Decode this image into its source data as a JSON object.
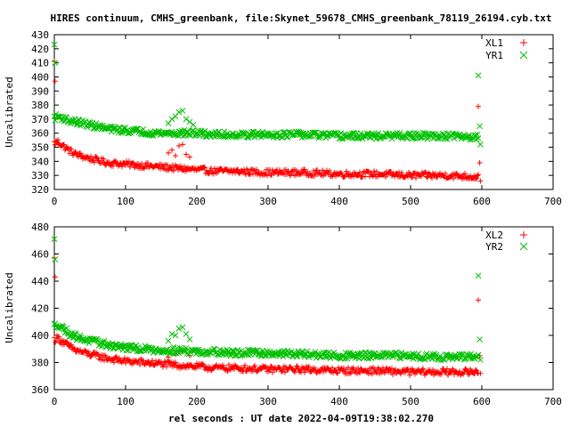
{
  "title": "HIRES continuum, CMHS_greenbank, file:Skynet_59678_CMHS_greenbank_78119_26194.cyb.txt",
  "xlabel": "rel seconds : UT date 2022-04-09T19:38:02.270",
  "colors": {
    "series_a": "#ff0000",
    "series_b": "#00c000",
    "axes": "#000000"
  },
  "chart_data": [
    {
      "type": "scatter",
      "ylabel": "Uncalibrated",
      "xlim": [
        0,
        700
      ],
      "ylim": [
        320,
        430
      ],
      "x_ticks": [
        0,
        100,
        200,
        300,
        400,
        500,
        600,
        700
      ],
      "y_ticks": [
        320,
        330,
        340,
        350,
        360,
        370,
        380,
        390,
        400,
        410,
        420,
        430
      ],
      "series": [
        {
          "name": "XL1",
          "marker": "plus",
          "trend": [
            [
              0,
              353
            ],
            [
              5,
              354
            ],
            [
              10,
              352
            ],
            [
              20,
              348
            ],
            [
              30,
              345
            ],
            [
              50,
              342
            ],
            [
              75,
              339
            ],
            [
              100,
              338
            ],
            [
              125,
              337
            ],
            [
              150,
              336
            ],
            [
              175,
              335
            ],
            [
              200,
              334
            ],
            [
              225,
              333
            ],
            [
              250,
              333
            ],
            [
              300,
              332
            ],
            [
              350,
              332
            ],
            [
              400,
              331
            ],
            [
              450,
              331
            ],
            [
              500,
              330
            ],
            [
              550,
              330
            ],
            [
              595,
              329
            ]
          ],
          "spikes": [
            [
              0,
              411
            ],
            [
              1,
              397
            ],
            [
              160,
              346
            ],
            [
              165,
              348
            ],
            [
              170,
              344
            ],
            [
              175,
              351
            ],
            [
              180,
              352
            ],
            [
              185,
              345
            ],
            [
              190,
              343
            ],
            [
              595,
              379
            ],
            [
              597,
              339
            ],
            [
              598,
              326
            ]
          ]
        },
        {
          "name": "YR1",
          "marker": "cross",
          "trend": [
            [
              0,
              371
            ],
            [
              5,
              372
            ],
            [
              10,
              371
            ],
            [
              20,
              369
            ],
            [
              30,
              368
            ],
            [
              50,
              366
            ],
            [
              75,
              363
            ],
            [
              100,
              362
            ],
            [
              125,
              361
            ],
            [
              150,
              360
            ],
            [
              175,
              360
            ],
            [
              200,
              360
            ],
            [
              225,
              359
            ],
            [
              250,
              359
            ],
            [
              300,
              359
            ],
            [
              350,
              359
            ],
            [
              400,
              358
            ],
            [
              450,
              358
            ],
            [
              500,
              358
            ],
            [
              550,
              358
            ],
            [
              595,
              357
            ]
          ],
          "spikes": [
            [
              0,
              423
            ],
            [
              1,
              410
            ],
            [
              160,
              367
            ],
            [
              165,
              370
            ],
            [
              170,
              372
            ],
            [
              175,
              375
            ],
            [
              180,
              376
            ],
            [
              185,
              370
            ],
            [
              190,
              368
            ],
            [
              195,
              366
            ],
            [
              595,
              401
            ],
            [
              597,
              365
            ],
            [
              598,
              352
            ]
          ]
        }
      ]
    },
    {
      "type": "scatter",
      "ylabel": "Uncalibrated",
      "xlim": [
        0,
        700
      ],
      "ylim": [
        360,
        480
      ],
      "x_ticks": [
        0,
        100,
        200,
        300,
        400,
        500,
        600,
        700
      ],
      "y_ticks": [
        360,
        380,
        400,
        420,
        440,
        460,
        480
      ],
      "series": [
        {
          "name": "XL2",
          "marker": "plus",
          "trend": [
            [
              0,
              397
            ],
            [
              5,
              398
            ],
            [
              10,
              396
            ],
            [
              20,
              392
            ],
            [
              30,
              389
            ],
            [
              50,
              386
            ],
            [
              75,
              383
            ],
            [
              100,
              381
            ],
            [
              125,
              380
            ],
            [
              150,
              379
            ],
            [
              175,
              378
            ],
            [
              200,
              377
            ],
            [
              225,
              376
            ],
            [
              250,
              376
            ],
            [
              300,
              375
            ],
            [
              350,
              375
            ],
            [
              400,
              374
            ],
            [
              450,
              374
            ],
            [
              500,
              373
            ],
            [
              550,
              373
            ],
            [
              595,
              373
            ]
          ],
          "spikes": [
            [
              0,
              457
            ],
            [
              1,
              443
            ],
            [
              160,
              384
            ],
            [
              170,
              386
            ],
            [
              175,
              388
            ],
            [
              180,
              388
            ],
            [
              190,
              385
            ],
            [
              595,
              426
            ],
            [
              597,
              385
            ],
            [
              598,
              372
            ]
          ]
        },
        {
          "name": "YR2",
          "marker": "cross",
          "trend": [
            [
              0,
              407
            ],
            [
              5,
              408
            ],
            [
              10,
              406
            ],
            [
              20,
              402
            ],
            [
              30,
              399
            ],
            [
              50,
              396
            ],
            [
              75,
              393
            ],
            [
              100,
              391
            ],
            [
              125,
              390
            ],
            [
              150,
              389
            ],
            [
              175,
              389
            ],
            [
              200,
              388
            ],
            [
              225,
              388
            ],
            [
              250,
              387
            ],
            [
              300,
              387
            ],
            [
              350,
              386
            ],
            [
              400,
              385
            ],
            [
              450,
              385
            ],
            [
              500,
              385
            ],
            [
              550,
              384
            ],
            [
              595,
              384
            ]
          ],
          "spikes": [
            [
              0,
              471
            ],
            [
              1,
              456
            ],
            [
              160,
              396
            ],
            [
              165,
              401
            ],
            [
              170,
              400
            ],
            [
              175,
              405
            ],
            [
              180,
              406
            ],
            [
              185,
              401
            ],
            [
              190,
              397
            ],
            [
              595,
              444
            ],
            [
              597,
              397
            ],
            [
              598,
              382
            ]
          ]
        }
      ]
    }
  ]
}
